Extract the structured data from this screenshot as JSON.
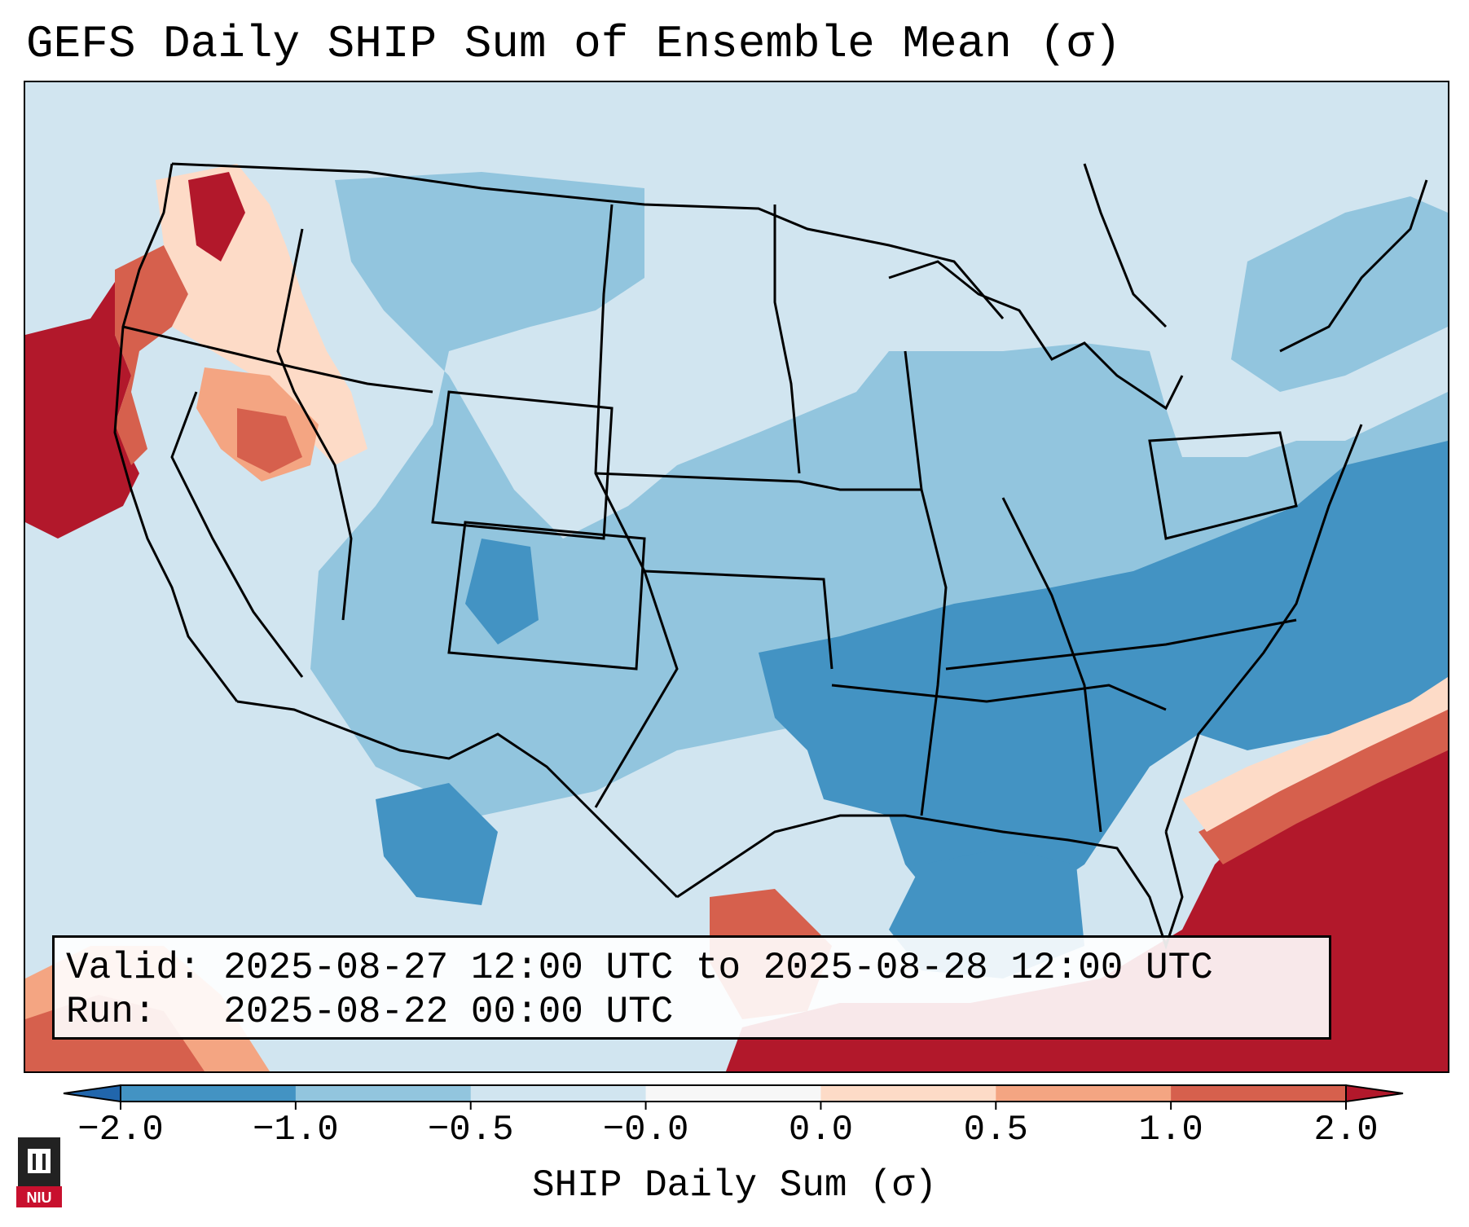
{
  "title": "GEFS Daily SHIP Sum of Ensemble Mean (σ)",
  "info": {
    "valid_line": "Valid: 2025-08-27 12:00 UTC to 2025-08-28 12:00 UTC",
    "run_line": "Run:   2025-08-22 00:00 UTC"
  },
  "colorbar": {
    "label": "SHIP Daily Sum (σ)",
    "ticks": [
      "−2.0",
      "−1.0",
      "−0.5",
      "−0.0",
      "0.0",
      "0.5",
      "1.0",
      "2.0"
    ],
    "bins": [
      {
        "color": "#2166ac"
      },
      {
        "color": "#4393c3"
      },
      {
        "color": "#92c5de"
      },
      {
        "color": "#d1e5f0"
      },
      {
        "color": "#f7f7f7"
      },
      {
        "color": "#fddbc7"
      },
      {
        "color": "#f4a582"
      },
      {
        "color": "#d6604d"
      },
      {
        "color": "#b2182b"
      }
    ]
  },
  "legend_colors": {
    "very_low": "#4393c3",
    "low": "#92c5de",
    "near_zero_neg": "#d1e5f0",
    "near_zero_pos": "#fddbc7",
    "moderate": "#f4a582",
    "high": "#d6604d",
    "very_high": "#b2182b"
  },
  "logo": {
    "text": "NIU",
    "color": "#c8102e"
  }
}
